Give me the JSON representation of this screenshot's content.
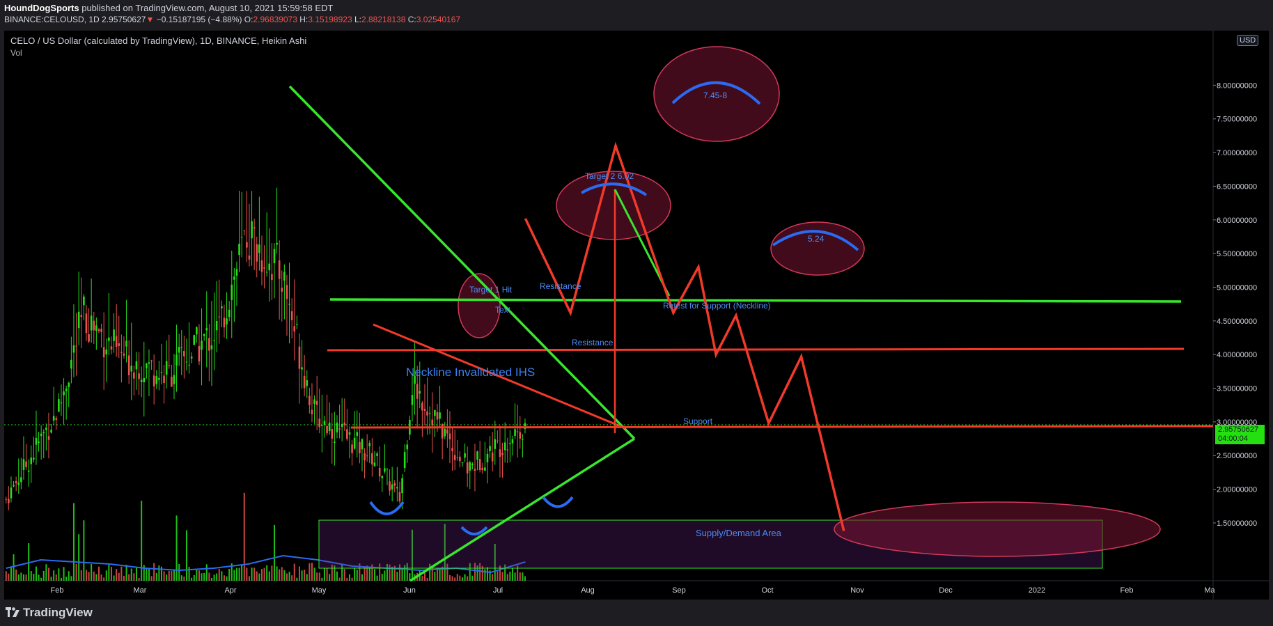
{
  "header": {
    "author": "HoundDogSports",
    "published_text": "published on TradingView.com, August 10, 2021 15:59:58 EDT",
    "symbol": "BINANCE:CELOUSD, 1D",
    "last_price": "2.95750627",
    "change_arrow": "▼",
    "change": "−0.15187195 (−4.88%)",
    "open_label": "O:",
    "open": "2.96839073",
    "high_label": "H:",
    "high": "3.15198923",
    "low_label": "L:",
    "low": "2.88218138",
    "close_label": "C:",
    "close": "3.02540167"
  },
  "legend": {
    "title": "CELO / US Dollar (calculated by TradingView), 1D, BINANCE, Heikin Ashi",
    "volume": "Vol"
  },
  "price_axis": {
    "currency": "USD",
    "ticks": [
      "8.00000000",
      "7.50000000",
      "7.00000000",
      "6.50000000",
      "6.00000000",
      "5.50000000",
      "5.00000000",
      "4.50000000",
      "4.00000000",
      "3.50000000",
      "3.00000000",
      "2.50000000",
      "2.00000000",
      "1.50000000"
    ],
    "current_price": "2.95750627",
    "countdown": "04:00:04"
  },
  "footer": {
    "logo_text": "TradingView"
  },
  "colors": {
    "up": "#26e01a",
    "down": "#ef5350",
    "bg": "#000000",
    "annot_blue": "#2a6bf2",
    "annot_green": "#39e62e",
    "annot_red": "#f23a2a"
  },
  "chart_data": {
    "type": "candlestick",
    "title": "CELO / US Dollar (calculated by TradingView), 1D, BINANCE, Heikin Ashi",
    "x_ticks": [
      "Feb",
      "Mar",
      "Apr",
      "May",
      "Jun",
      "Jul",
      "Aug",
      "Sep",
      "Oct",
      "Nov",
      "Dec",
      "2022",
      "Feb",
      "Ma"
    ],
    "ylim": [
      1.1,
      8.0
    ],
    "price_segments": [
      {
        "date": "2021-01-15",
        "price": 1.85
      },
      {
        "date": "2021-02-05",
        "price": 3.2
      },
      {
        "date": "2021-02-15",
        "price": 4.6
      },
      {
        "date": "2021-03-01",
        "price": 4.0
      },
      {
        "date": "2021-03-20",
        "price": 3.7
      },
      {
        "date": "2021-04-10",
        "price": 4.4
      },
      {
        "date": "2021-04-21",
        "price": 5.8
      },
      {
        "date": "2021-05-05",
        "price": 5.2
      },
      {
        "date": "2021-05-18",
        "price": 3.1
      },
      {
        "date": "2021-06-10",
        "price": 2.5
      },
      {
        "date": "2021-06-21",
        "price": 1.85
      },
      {
        "date": "2021-06-26",
        "price": 3.6
      },
      {
        "date": "2021-07-18",
        "price": 2.3
      },
      {
        "date": "2021-08-10",
        "price": 2.96
      }
    ],
    "volume_line": [
      0.06,
      0.1,
      0.09,
      0.08,
      0.06,
      0.05,
      0.06,
      0.08,
      0.12,
      0.1,
      0.07,
      0.06,
      0.05,
      0.06,
      0.04,
      0.09
    ],
    "annotations": {
      "texts": [
        "Target 1 Hit",
        "Text",
        "Resistance",
        "Resistance",
        "Neckline Invalidated IHS",
        "Support",
        "Retest for Support (Neckline)",
        "Target 2 6.02",
        "7.45-8",
        "5.24",
        "Supply/Demand Area"
      ],
      "levels": [
        {
          "name": "Neckline",
          "price": 4.62
        },
        {
          "name": "Resistance",
          "price": 3.97
        },
        {
          "name": "Support",
          "price": 2.98
        }
      ],
      "projection_path": [
        {
          "date": "2021-08-10",
          "price": 6.02
        },
        {
          "date": "2021-08-28",
          "price": 4.62
        },
        {
          "date": "2021-09-15",
          "price": 7.1
        },
        {
          "date": "2021-10-08",
          "price": 4.62
        },
        {
          "date": "2021-10-18",
          "price": 5.3
        },
        {
          "date": "2021-10-25",
          "price": 4.0
        },
        {
          "date": "2021-11-02",
          "price": 4.58
        },
        {
          "date": "2021-11-15",
          "price": 2.98
        },
        {
          "date": "2021-11-28",
          "price": 3.97
        },
        {
          "date": "2021-12-15",
          "price": 1.38
        }
      ]
    }
  }
}
